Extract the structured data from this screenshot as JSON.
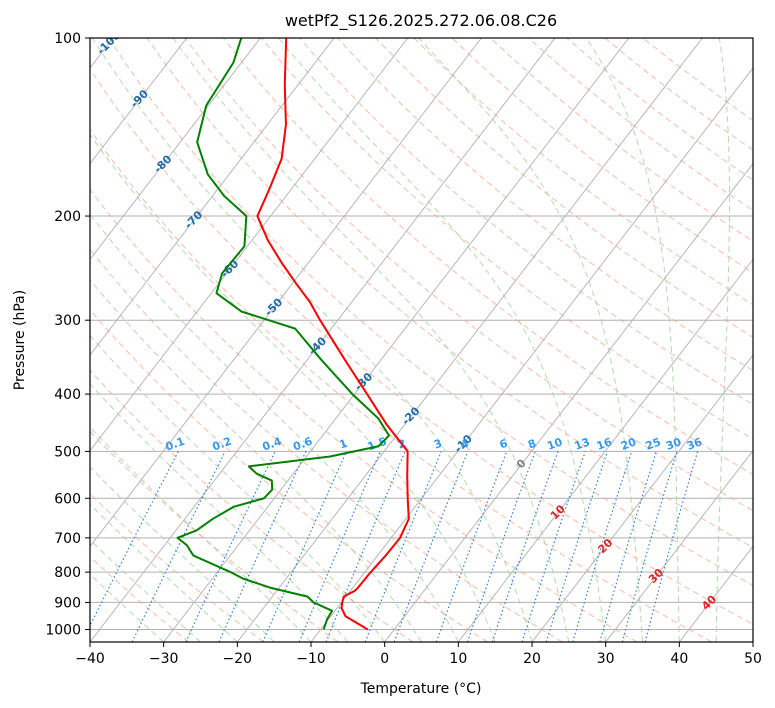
{
  "colors": {
    "temperature": "#ff0000",
    "dewpoint": "#008000",
    "isotherm": "#b0b0b0",
    "isobar": "#b0b0b0",
    "dry_adiabat": "#f4a58a",
    "moist_adiabat": "#a6d5a0",
    "mixing_ratio": "#1f77d4",
    "isotherm_label": "#1f6aa8",
    "mixing_ratio_label": "#3399ee",
    "adiabat_label": "#dd2222",
    "zero_label": "#7f7f7f"
  },
  "chart_data": {
    "type": "line",
    "title": "wetPf2_S126.2025.272.06.08.C26",
    "xlabel": "Temperature (°C)",
    "ylabel": "Pressure (hPa)",
    "xlim": [
      -40,
      50
    ],
    "ylim": [
      1050,
      100
    ],
    "y_scale": "log",
    "grid": true,
    "x_ticks": [
      "−40",
      "−30",
      "−20",
      "−10",
      "0",
      "10",
      "20",
      "30",
      "40",
      "50"
    ],
    "y_ticks": [
      "100",
      "200",
      "300",
      "400",
      "500",
      "600",
      "700",
      "800",
      "900",
      "1000"
    ],
    "isotherm_labels": [
      "-100",
      "-90",
      "-80",
      "-70",
      "-60",
      "-50",
      "-40",
      "-30",
      "-20",
      "-10",
      "0",
      "10",
      "20",
      "30",
      "40"
    ],
    "mixing_ratio_labels": [
      "0.1",
      "0.2",
      "0.4",
      "0.6",
      "1",
      "1.5",
      "2",
      "3",
      "4",
      "6",
      "8",
      "10",
      "13",
      "16",
      "20",
      "25",
      "30",
      "36"
    ],
    "series": [
      {
        "key": "temperature",
        "points": [
          [
            1000,
            -3.6
          ],
          [
            950,
            -8
          ],
          [
            920,
            -9.4
          ],
          [
            900,
            -9.9
          ],
          [
            880,
            -10.3
          ],
          [
            860,
            -9.4
          ],
          [
            850,
            -9.3
          ],
          [
            800,
            -9.2
          ],
          [
            750,
            -8.9
          ],
          [
            700,
            -8.8
          ],
          [
            650,
            -9.6
          ],
          [
            600,
            -11.9
          ],
          [
            550,
            -14.3
          ],
          [
            500,
            -16.8
          ],
          [
            450,
            -22.5
          ],
          [
            400,
            -28.3
          ],
          [
            350,
            -34.9
          ],
          [
            300,
            -42.4
          ],
          [
            280,
            -45.6
          ],
          [
            260,
            -49.5
          ],
          [
            240,
            -53.6
          ],
          [
            220,
            -57.8
          ],
          [
            200,
            -61.8
          ],
          [
            180,
            -63
          ],
          [
            160,
            -64.5
          ],
          [
            140,
            -67.5
          ],
          [
            120,
            -71.8
          ],
          [
            100,
            -76.5
          ]
        ]
      },
      {
        "key": "dewpoint",
        "points": [
          [
            1000,
            -9.6
          ],
          [
            960,
            -10.2
          ],
          [
            930,
            -10.4
          ],
          [
            900,
            -13.8
          ],
          [
            880,
            -15.2
          ],
          [
            850,
            -21.2
          ],
          [
            820,
            -25.9
          ],
          [
            800,
            -28.2
          ],
          [
            750,
            -35
          ],
          [
            720,
            -37
          ],
          [
            700,
            -39
          ],
          [
            680,
            -37.2
          ],
          [
            650,
            -36.2
          ],
          [
            620,
            -34.6
          ],
          [
            600,
            -31.4
          ],
          [
            580,
            -31.2
          ],
          [
            560,
            -32.2
          ],
          [
            545,
            -35
          ],
          [
            530,
            -36.8
          ],
          [
            510,
            -26.8
          ],
          [
            490,
            -21.3
          ],
          [
            470,
            -21
          ],
          [
            440,
            -24.2
          ],
          [
            400,
            -30.3
          ],
          [
            350,
            -38.1
          ],
          [
            310,
            -44.9
          ],
          [
            290,
            -54
          ],
          [
            270,
            -59.3
          ],
          [
            250,
            -60.6
          ],
          [
            225,
            -60.4
          ],
          [
            200,
            -63.3
          ],
          [
            185,
            -68.4
          ],
          [
            170,
            -72.9
          ],
          [
            150,
            -77.7
          ],
          [
            130,
            -80.3
          ],
          [
            110,
            -81.1
          ],
          [
            100,
            -82.6
          ]
        ]
      }
    ]
  }
}
